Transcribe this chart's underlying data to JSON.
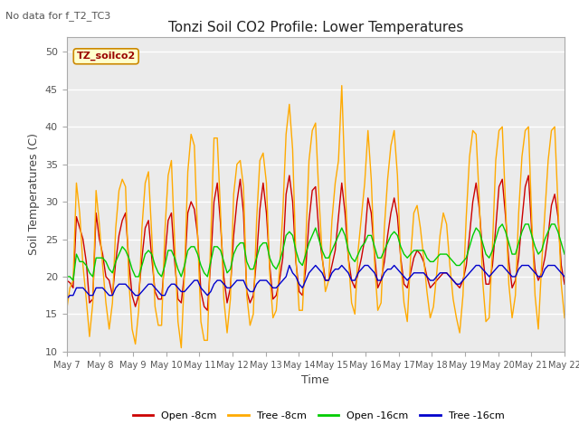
{
  "title": "Tonzi Soil CO2 Profile: Lower Temperatures",
  "subtitle": "No data for f_T2_TC3",
  "xlabel": "Time",
  "ylabel": "Soil Temperatures (C)",
  "ylim": [
    10,
    52
  ],
  "yticks": [
    10,
    15,
    20,
    25,
    30,
    35,
    40,
    45,
    50
  ],
  "plot_bg": "#ebebeb",
  "fig_bg": "#ffffff",
  "legend_label": "TZ_soilco2",
  "series_colors": {
    "open_8cm": "#cc0000",
    "tree_8cm": "#ffaa00",
    "open_16cm": "#00cc00",
    "tree_16cm": "#0000cc"
  },
  "legend_colors": {
    "open_8cm": "#cc0000",
    "tree_8cm": "#ffaa00",
    "open_16cm": "#00cc00",
    "tree_16cm": "#0000cc"
  },
  "xtick_labels": [
    "May 7",
    "May 8",
    "May 9",
    "May 10",
    "May 11",
    "May 12",
    "May 13",
    "May 14",
    "May 15",
    "May 16",
    "May 17",
    "May 18",
    "May 19",
    "May 20",
    "May 21",
    "May 22"
  ],
  "open_8cm": [
    19.5,
    19.2,
    18.5,
    28.0,
    26.5,
    25.0,
    22.0,
    16.5,
    17.0,
    28.5,
    25.0,
    23.0,
    20.0,
    19.5,
    17.5,
    22.0,
    25.5,
    27.5,
    28.5,
    22.0,
    17.5,
    16.0,
    17.5,
    22.5,
    26.5,
    27.5,
    22.5,
    18.0,
    17.0,
    17.0,
    22.5,
    27.5,
    28.5,
    22.0,
    17.0,
    16.5,
    20.5,
    28.5,
    30.0,
    29.0,
    25.5,
    18.0,
    16.0,
    15.5,
    22.0,
    30.0,
    32.5,
    27.0,
    20.0,
    16.5,
    18.5,
    25.5,
    30.0,
    33.0,
    28.5,
    18.0,
    16.5,
    17.5,
    22.5,
    29.0,
    32.5,
    28.5,
    21.5,
    17.0,
    17.5,
    19.5,
    22.5,
    31.0,
    33.5,
    30.0,
    22.0,
    18.0,
    17.5,
    21.0,
    27.5,
    31.5,
    32.0,
    26.0,
    22.5,
    19.5,
    19.5,
    21.5,
    23.5,
    28.0,
    32.5,
    28.5,
    22.5,
    19.5,
    18.5,
    20.5,
    22.5,
    25.0,
    30.5,
    28.5,
    23.0,
    18.5,
    19.5,
    22.0,
    25.5,
    28.5,
    30.5,
    28.0,
    22.5,
    19.0,
    18.5,
    20.5,
    22.5,
    23.5,
    23.0,
    22.0,
    20.0,
    18.5,
    19.0,
    19.5,
    20.0,
    20.5,
    20.5,
    20.0,
    19.5,
    19.0,
    18.5,
    19.5,
    21.5,
    25.5,
    30.0,
    32.5,
    29.0,
    23.0,
    19.0,
    19.0,
    21.5,
    26.5,
    32.0,
    33.0,
    28.0,
    22.0,
    18.5,
    19.5,
    22.5,
    27.5,
    32.0,
    33.5,
    26.0,
    21.0,
    19.5,
    20.5,
    22.5,
    25.5,
    29.5,
    31.0,
    28.0,
    21.5,
    19.0
  ],
  "tree_8cm": [
    15.5,
    18.5,
    19.5,
    32.5,
    28.5,
    21.5,
    17.0,
    12.0,
    16.5,
    31.5,
    27.0,
    21.5,
    16.5,
    13.0,
    16.5,
    26.5,
    31.5,
    33.0,
    32.0,
    19.5,
    13.0,
    11.0,
    15.5,
    26.5,
    32.5,
    34.0,
    25.5,
    16.0,
    13.5,
    13.5,
    26.0,
    33.5,
    35.5,
    24.5,
    14.0,
    10.5,
    20.5,
    34.0,
    39.0,
    37.5,
    25.5,
    14.0,
    11.5,
    11.5,
    25.0,
    38.5,
    38.5,
    28.5,
    17.0,
    12.5,
    17.0,
    31.0,
    35.0,
    35.5,
    32.0,
    17.5,
    13.5,
    15.0,
    27.5,
    35.5,
    36.5,
    32.5,
    20.5,
    14.5,
    15.5,
    21.0,
    28.5,
    39.0,
    43.0,
    37.0,
    22.5,
    15.5,
    15.5,
    24.5,
    35.5,
    39.5,
    40.5,
    31.0,
    23.0,
    18.0,
    19.5,
    27.5,
    32.5,
    35.5,
    45.5,
    32.5,
    22.5,
    16.5,
    15.0,
    23.5,
    28.0,
    32.5,
    39.5,
    33.0,
    22.0,
    15.5,
    16.5,
    26.5,
    33.0,
    37.5,
    39.5,
    33.5,
    22.0,
    16.5,
    14.0,
    22.5,
    28.5,
    29.5,
    26.5,
    22.5,
    18.0,
    14.5,
    16.0,
    20.5,
    25.5,
    28.5,
    27.0,
    21.5,
    17.0,
    14.5,
    12.5,
    17.5,
    28.0,
    36.0,
    39.5,
    39.0,
    30.0,
    19.5,
    14.0,
    14.5,
    24.0,
    35.5,
    39.5,
    40.0,
    29.5,
    19.0,
    14.5,
    17.5,
    28.5,
    36.0,
    39.5,
    40.0,
    27.5,
    17.5,
    13.0,
    21.5,
    28.5,
    35.5,
    39.5,
    40.0,
    29.5,
    19.0,
    14.5
  ],
  "open_16cm": [
    20.0,
    20.0,
    19.5,
    23.0,
    22.0,
    22.0,
    21.5,
    20.5,
    20.0,
    22.5,
    22.5,
    22.5,
    22.0,
    21.0,
    20.5,
    22.0,
    23.0,
    24.0,
    23.5,
    22.5,
    21.0,
    20.0,
    20.0,
    21.5,
    23.0,
    23.5,
    23.0,
    21.5,
    20.5,
    20.0,
    21.5,
    23.5,
    23.5,
    22.5,
    21.0,
    20.0,
    21.5,
    23.5,
    24.0,
    24.0,
    23.0,
    21.5,
    20.5,
    20.0,
    22.0,
    24.0,
    24.0,
    23.5,
    22.0,
    20.5,
    21.0,
    23.0,
    24.0,
    24.5,
    24.5,
    22.0,
    21.0,
    21.0,
    22.5,
    24.0,
    24.5,
    24.5,
    22.5,
    21.5,
    21.0,
    22.0,
    23.5,
    25.5,
    26.0,
    25.5,
    23.5,
    22.0,
    21.5,
    23.0,
    24.5,
    25.5,
    26.5,
    25.0,
    23.5,
    22.5,
    22.5,
    23.5,
    24.5,
    25.5,
    26.5,
    25.5,
    23.5,
    22.5,
    22.0,
    23.0,
    24.0,
    24.5,
    25.5,
    25.5,
    24.0,
    22.5,
    22.5,
    23.5,
    24.5,
    25.5,
    26.0,
    25.5,
    24.0,
    23.0,
    22.5,
    23.0,
    23.5,
    23.5,
    23.5,
    23.5,
    22.5,
    22.0,
    22.0,
    22.5,
    23.0,
    23.0,
    23.0,
    22.5,
    22.0,
    21.5,
    21.5,
    22.0,
    22.5,
    24.0,
    25.5,
    26.5,
    26.0,
    24.5,
    23.0,
    22.5,
    23.5,
    25.0,
    26.5,
    27.0,
    26.0,
    24.5,
    23.0,
    23.0,
    24.5,
    26.0,
    27.0,
    27.0,
    25.5,
    24.0,
    23.0,
    23.5,
    25.0,
    26.0,
    27.0,
    27.0,
    26.0,
    24.5,
    23.0
  ],
  "tree_16cm": [
    17.0,
    17.5,
    17.5,
    18.5,
    18.5,
    18.5,
    18.0,
    17.5,
    17.5,
    18.5,
    18.5,
    18.5,
    18.0,
    17.5,
    17.5,
    18.5,
    19.0,
    19.0,
    19.0,
    18.5,
    18.0,
    17.5,
    17.5,
    18.0,
    18.5,
    19.0,
    19.0,
    18.5,
    18.0,
    17.5,
    17.5,
    18.5,
    19.0,
    19.0,
    18.5,
    18.0,
    18.0,
    18.5,
    19.0,
    19.5,
    19.5,
    18.5,
    18.0,
    17.5,
    18.0,
    19.0,
    19.5,
    19.5,
    19.0,
    18.5,
    18.5,
    19.0,
    19.5,
    19.5,
    19.5,
    18.5,
    18.0,
    18.0,
    19.0,
    19.5,
    19.5,
    19.5,
    19.0,
    18.5,
    18.5,
    19.0,
    19.5,
    20.0,
    21.5,
    20.5,
    20.0,
    19.0,
    18.5,
    19.5,
    20.5,
    21.0,
    21.5,
    21.0,
    20.5,
    19.5,
    19.5,
    20.5,
    21.0,
    21.0,
    21.5,
    21.0,
    20.5,
    19.5,
    19.5,
    20.5,
    21.0,
    21.5,
    21.5,
    21.0,
    20.5,
    19.5,
    19.5,
    20.5,
    21.0,
    21.0,
    21.5,
    21.0,
    20.5,
    20.0,
    19.5,
    20.0,
    20.5,
    20.5,
    20.5,
    20.5,
    20.0,
    19.5,
    19.5,
    20.0,
    20.5,
    20.5,
    20.5,
    20.0,
    19.5,
    19.0,
    19.0,
    19.5,
    20.0,
    20.5,
    21.0,
    21.5,
    21.5,
    21.0,
    20.5,
    20.0,
    20.5,
    21.0,
    21.5,
    21.5,
    21.0,
    20.5,
    20.0,
    20.0,
    21.0,
    21.5,
    21.5,
    21.5,
    21.0,
    20.5,
    20.0,
    20.0,
    21.0,
    21.5,
    21.5,
    21.5,
    21.0,
    20.5,
    20.0
  ]
}
